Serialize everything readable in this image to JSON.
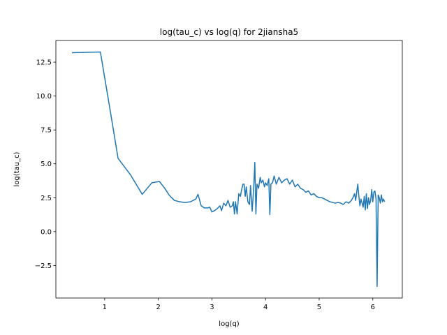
{
  "chart_data": {
    "type": "line",
    "title": "log(tau_c) vs log(q) for 2jiansha5",
    "xlabel": "log(q)",
    "ylabel": "log(tau_c)",
    "xlim": [
      0.09,
      6.55
    ],
    "ylim": [
      -4.9,
      14.1
    ],
    "xticks": [
      1,
      2,
      3,
      4,
      5,
      6
    ],
    "yticks": [
      -2.5,
      0.0,
      2.5,
      5.0,
      7.5,
      10.0,
      12.5
    ],
    "xtick_labels": [
      "1",
      "2",
      "3",
      "4",
      "5",
      "6"
    ],
    "ytick_labels": [
      "−2.5",
      "0.0",
      "2.5",
      "5.0",
      "7.5",
      "10.0",
      "12.5"
    ],
    "grid": false,
    "line_color": "#1f77b4",
    "series": [
      {
        "x": [
          0.39,
          0.92,
          1.1,
          1.25,
          1.48,
          1.7,
          1.88,
          2.02,
          2.12,
          2.2,
          2.3,
          2.4,
          2.5,
          2.6,
          2.7,
          2.74,
          2.8,
          2.86,
          2.92,
          2.96,
          3.0,
          3.05,
          3.1,
          3.15,
          3.18,
          3.22,
          3.26,
          3.3,
          3.34,
          3.38,
          3.4,
          3.42,
          3.44,
          3.47,
          3.5,
          3.53,
          3.56,
          3.58,
          3.6,
          3.62,
          3.64,
          3.67,
          3.7,
          3.72,
          3.75,
          3.78,
          3.8,
          3.82,
          3.84,
          3.87,
          3.9,
          3.92,
          3.95,
          3.98,
          4.0,
          4.03,
          4.06,
          4.08,
          4.1,
          4.13,
          4.16,
          4.2,
          4.25,
          4.3,
          4.35,
          4.4,
          4.45,
          4.5,
          4.55,
          4.6,
          4.65,
          4.7,
          4.75,
          4.8,
          4.85,
          4.9,
          4.95,
          5.0,
          5.05,
          5.1,
          5.15,
          5.2,
          5.25,
          5.3,
          5.35,
          5.4,
          5.45,
          5.5,
          5.55,
          5.6,
          5.63,
          5.66,
          5.68,
          5.7,
          5.72,
          5.74,
          5.76,
          5.78,
          5.8,
          5.82,
          5.84,
          5.86,
          5.88,
          5.9,
          5.92,
          5.94,
          5.96,
          5.98,
          6.0,
          6.02,
          6.04,
          6.06,
          6.08,
          6.1,
          6.12,
          6.14,
          6.16,
          6.18,
          6.2,
          6.22
        ],
        "y": [
          13.2,
          13.25,
          9.0,
          5.4,
          4.2,
          2.75,
          3.6,
          3.7,
          3.2,
          2.7,
          2.3,
          2.2,
          2.15,
          2.2,
          2.4,
          2.75,
          1.9,
          1.75,
          1.75,
          1.8,
          1.45,
          1.55,
          1.7,
          1.9,
          1.55,
          2.1,
          1.9,
          2.3,
          1.8,
          1.9,
          2.2,
          1.3,
          2.2,
          1.3,
          2.8,
          2.6,
          3.2,
          3.5,
          3.5,
          2.6,
          3.3,
          2.2,
          2.0,
          3.4,
          1.5,
          3.3,
          5.1,
          1.3,
          3.5,
          3.2,
          4.0,
          3.6,
          3.8,
          3.3,
          3.6,
          3.4,
          3.9,
          1.25,
          3.5,
          3.6,
          4.1,
          3.5,
          4.0,
          3.6,
          3.8,
          3.9,
          3.5,
          3.8,
          3.3,
          3.5,
          3.2,
          3.1,
          2.9,
          3.0,
          2.7,
          2.8,
          2.6,
          2.5,
          2.5,
          2.4,
          2.3,
          2.2,
          2.15,
          2.1,
          2.15,
          2.1,
          2.0,
          2.2,
          2.1,
          2.3,
          2.5,
          2.8,
          2.3,
          2.9,
          3.5,
          2.6,
          1.9,
          2.4,
          2.1,
          1.8,
          2.6,
          1.6,
          2.8,
          1.7,
          2.5,
          2.0,
          2.3,
          3.1,
          2.2,
          2.9,
          3.0,
          2.4,
          -4.05,
          2.7,
          2.5,
          2.1,
          2.7,
          2.2,
          2.4,
          2.2
        ]
      }
    ]
  }
}
